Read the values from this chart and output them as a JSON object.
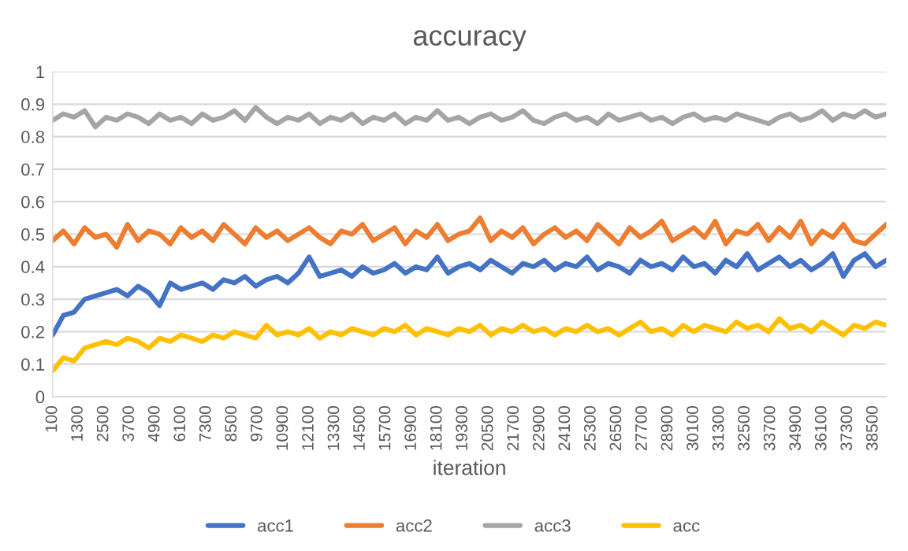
{
  "chart_data": {
    "type": "line",
    "title": "accuracy",
    "xlabel": "iteration",
    "x": [
      100,
      600,
      1100,
      1600,
      2100,
      2600,
      3100,
      3600,
      4100,
      4600,
      5100,
      5600,
      6100,
      6600,
      7100,
      7600,
      8100,
      8600,
      9100,
      9600,
      10100,
      10600,
      11100,
      11600,
      12100,
      12600,
      13100,
      13600,
      14100,
      14600,
      15100,
      15600,
      16100,
      16600,
      17100,
      17600,
      18100,
      18600,
      19100,
      19600,
      20100,
      20600,
      21100,
      21600,
      22100,
      22600,
      23100,
      23600,
      24100,
      24600,
      25100,
      25600,
      26100,
      26600,
      27100,
      27600,
      28100,
      28600,
      29100,
      29600,
      30100,
      30600,
      31100,
      31600,
      32100,
      32600,
      33100,
      33600,
      34100,
      34600,
      35100,
      35600,
      36100,
      36600,
      37100,
      37600,
      38100,
      38600,
      39100
    ],
    "series": [
      {
        "name": "acc1",
        "color": "#4472c4",
        "values": [
          0.19,
          0.25,
          0.26,
          0.3,
          0.31,
          0.32,
          0.33,
          0.31,
          0.34,
          0.32,
          0.28,
          0.35,
          0.33,
          0.34,
          0.35,
          0.33,
          0.36,
          0.35,
          0.37,
          0.34,
          0.36,
          0.37,
          0.35,
          0.38,
          0.43,
          0.37,
          0.38,
          0.39,
          0.37,
          0.4,
          0.38,
          0.39,
          0.41,
          0.38,
          0.4,
          0.39,
          0.43,
          0.38,
          0.4,
          0.41,
          0.39,
          0.42,
          0.4,
          0.38,
          0.41,
          0.4,
          0.42,
          0.39,
          0.41,
          0.4,
          0.43,
          0.39,
          0.41,
          0.4,
          0.38,
          0.42,
          0.4,
          0.41,
          0.39,
          0.43,
          0.4,
          0.41,
          0.38,
          0.42,
          0.4,
          0.44,
          0.39,
          0.41,
          0.43,
          0.4,
          0.42,
          0.39,
          0.41,
          0.44,
          0.37,
          0.42,
          0.44,
          0.4,
          0.42
        ]
      },
      {
        "name": "acc2",
        "color": "#ed7d31",
        "values": [
          0.48,
          0.51,
          0.47,
          0.52,
          0.49,
          0.5,
          0.46,
          0.53,
          0.48,
          0.51,
          0.5,
          0.47,
          0.52,
          0.49,
          0.51,
          0.48,
          0.53,
          0.5,
          0.47,
          0.52,
          0.49,
          0.51,
          0.48,
          0.5,
          0.52,
          0.49,
          0.47,
          0.51,
          0.5,
          0.53,
          0.48,
          0.5,
          0.52,
          0.47,
          0.51,
          0.49,
          0.53,
          0.48,
          0.5,
          0.51,
          0.55,
          0.48,
          0.51,
          0.49,
          0.52,
          0.47,
          0.5,
          0.52,
          0.49,
          0.51,
          0.48,
          0.53,
          0.5,
          0.47,
          0.52,
          0.49,
          0.51,
          0.54,
          0.48,
          0.5,
          0.52,
          0.49,
          0.54,
          0.47,
          0.51,
          0.5,
          0.53,
          0.48,
          0.52,
          0.49,
          0.54,
          0.47,
          0.51,
          0.49,
          0.53,
          0.48,
          0.47,
          0.5,
          0.53
        ]
      },
      {
        "name": "acc3",
        "color": "#a5a5a5",
        "values": [
          0.85,
          0.87,
          0.86,
          0.88,
          0.83,
          0.86,
          0.85,
          0.87,
          0.86,
          0.84,
          0.87,
          0.85,
          0.86,
          0.84,
          0.87,
          0.85,
          0.86,
          0.88,
          0.85,
          0.89,
          0.86,
          0.84,
          0.86,
          0.85,
          0.87,
          0.84,
          0.86,
          0.85,
          0.87,
          0.84,
          0.86,
          0.85,
          0.87,
          0.84,
          0.86,
          0.85,
          0.88,
          0.85,
          0.86,
          0.84,
          0.86,
          0.87,
          0.85,
          0.86,
          0.88,
          0.85,
          0.84,
          0.86,
          0.87,
          0.85,
          0.86,
          0.84,
          0.87,
          0.85,
          0.86,
          0.87,
          0.85,
          0.86,
          0.84,
          0.86,
          0.87,
          0.85,
          0.86,
          0.85,
          0.87,
          0.86,
          0.85,
          0.84,
          0.86,
          0.87,
          0.85,
          0.86,
          0.88,
          0.85,
          0.87,
          0.86,
          0.88,
          0.86,
          0.87
        ]
      },
      {
        "name": "acc",
        "color": "#ffc000",
        "values": [
          0.08,
          0.12,
          0.11,
          0.15,
          0.16,
          0.17,
          0.16,
          0.18,
          0.17,
          0.15,
          0.18,
          0.17,
          0.19,
          0.18,
          0.17,
          0.19,
          0.18,
          0.2,
          0.19,
          0.18,
          0.22,
          0.19,
          0.2,
          0.19,
          0.21,
          0.18,
          0.2,
          0.19,
          0.21,
          0.2,
          0.19,
          0.21,
          0.2,
          0.22,
          0.19,
          0.21,
          0.2,
          0.19,
          0.21,
          0.2,
          0.22,
          0.19,
          0.21,
          0.2,
          0.22,
          0.2,
          0.21,
          0.19,
          0.21,
          0.2,
          0.22,
          0.2,
          0.21,
          0.19,
          0.21,
          0.23,
          0.2,
          0.21,
          0.19,
          0.22,
          0.2,
          0.22,
          0.21,
          0.2,
          0.23,
          0.21,
          0.22,
          0.2,
          0.24,
          0.21,
          0.22,
          0.2,
          0.23,
          0.21,
          0.19,
          0.22,
          0.21,
          0.23,
          0.22
        ]
      }
    ],
    "xlim": [
      100,
      39100
    ],
    "xticks": [
      100,
      1300,
      2500,
      3700,
      4900,
      6100,
      7300,
      8500,
      9700,
      10900,
      12100,
      13300,
      14500,
      15700,
      16900,
      18100,
      19300,
      20500,
      21700,
      22900,
      24100,
      25300,
      26500,
      27700,
      28900,
      30100,
      31300,
      32500,
      33700,
      34900,
      36100,
      37300,
      38500
    ],
    "ylim": [
      0,
      1
    ],
    "yticks": [
      0,
      0.1,
      0.2,
      0.3,
      0.4,
      0.5,
      0.6,
      0.7,
      0.8,
      0.9,
      1
    ],
    "grid": "y",
    "legend": "bottom",
    "marker": "none",
    "line_style": "solid"
  }
}
